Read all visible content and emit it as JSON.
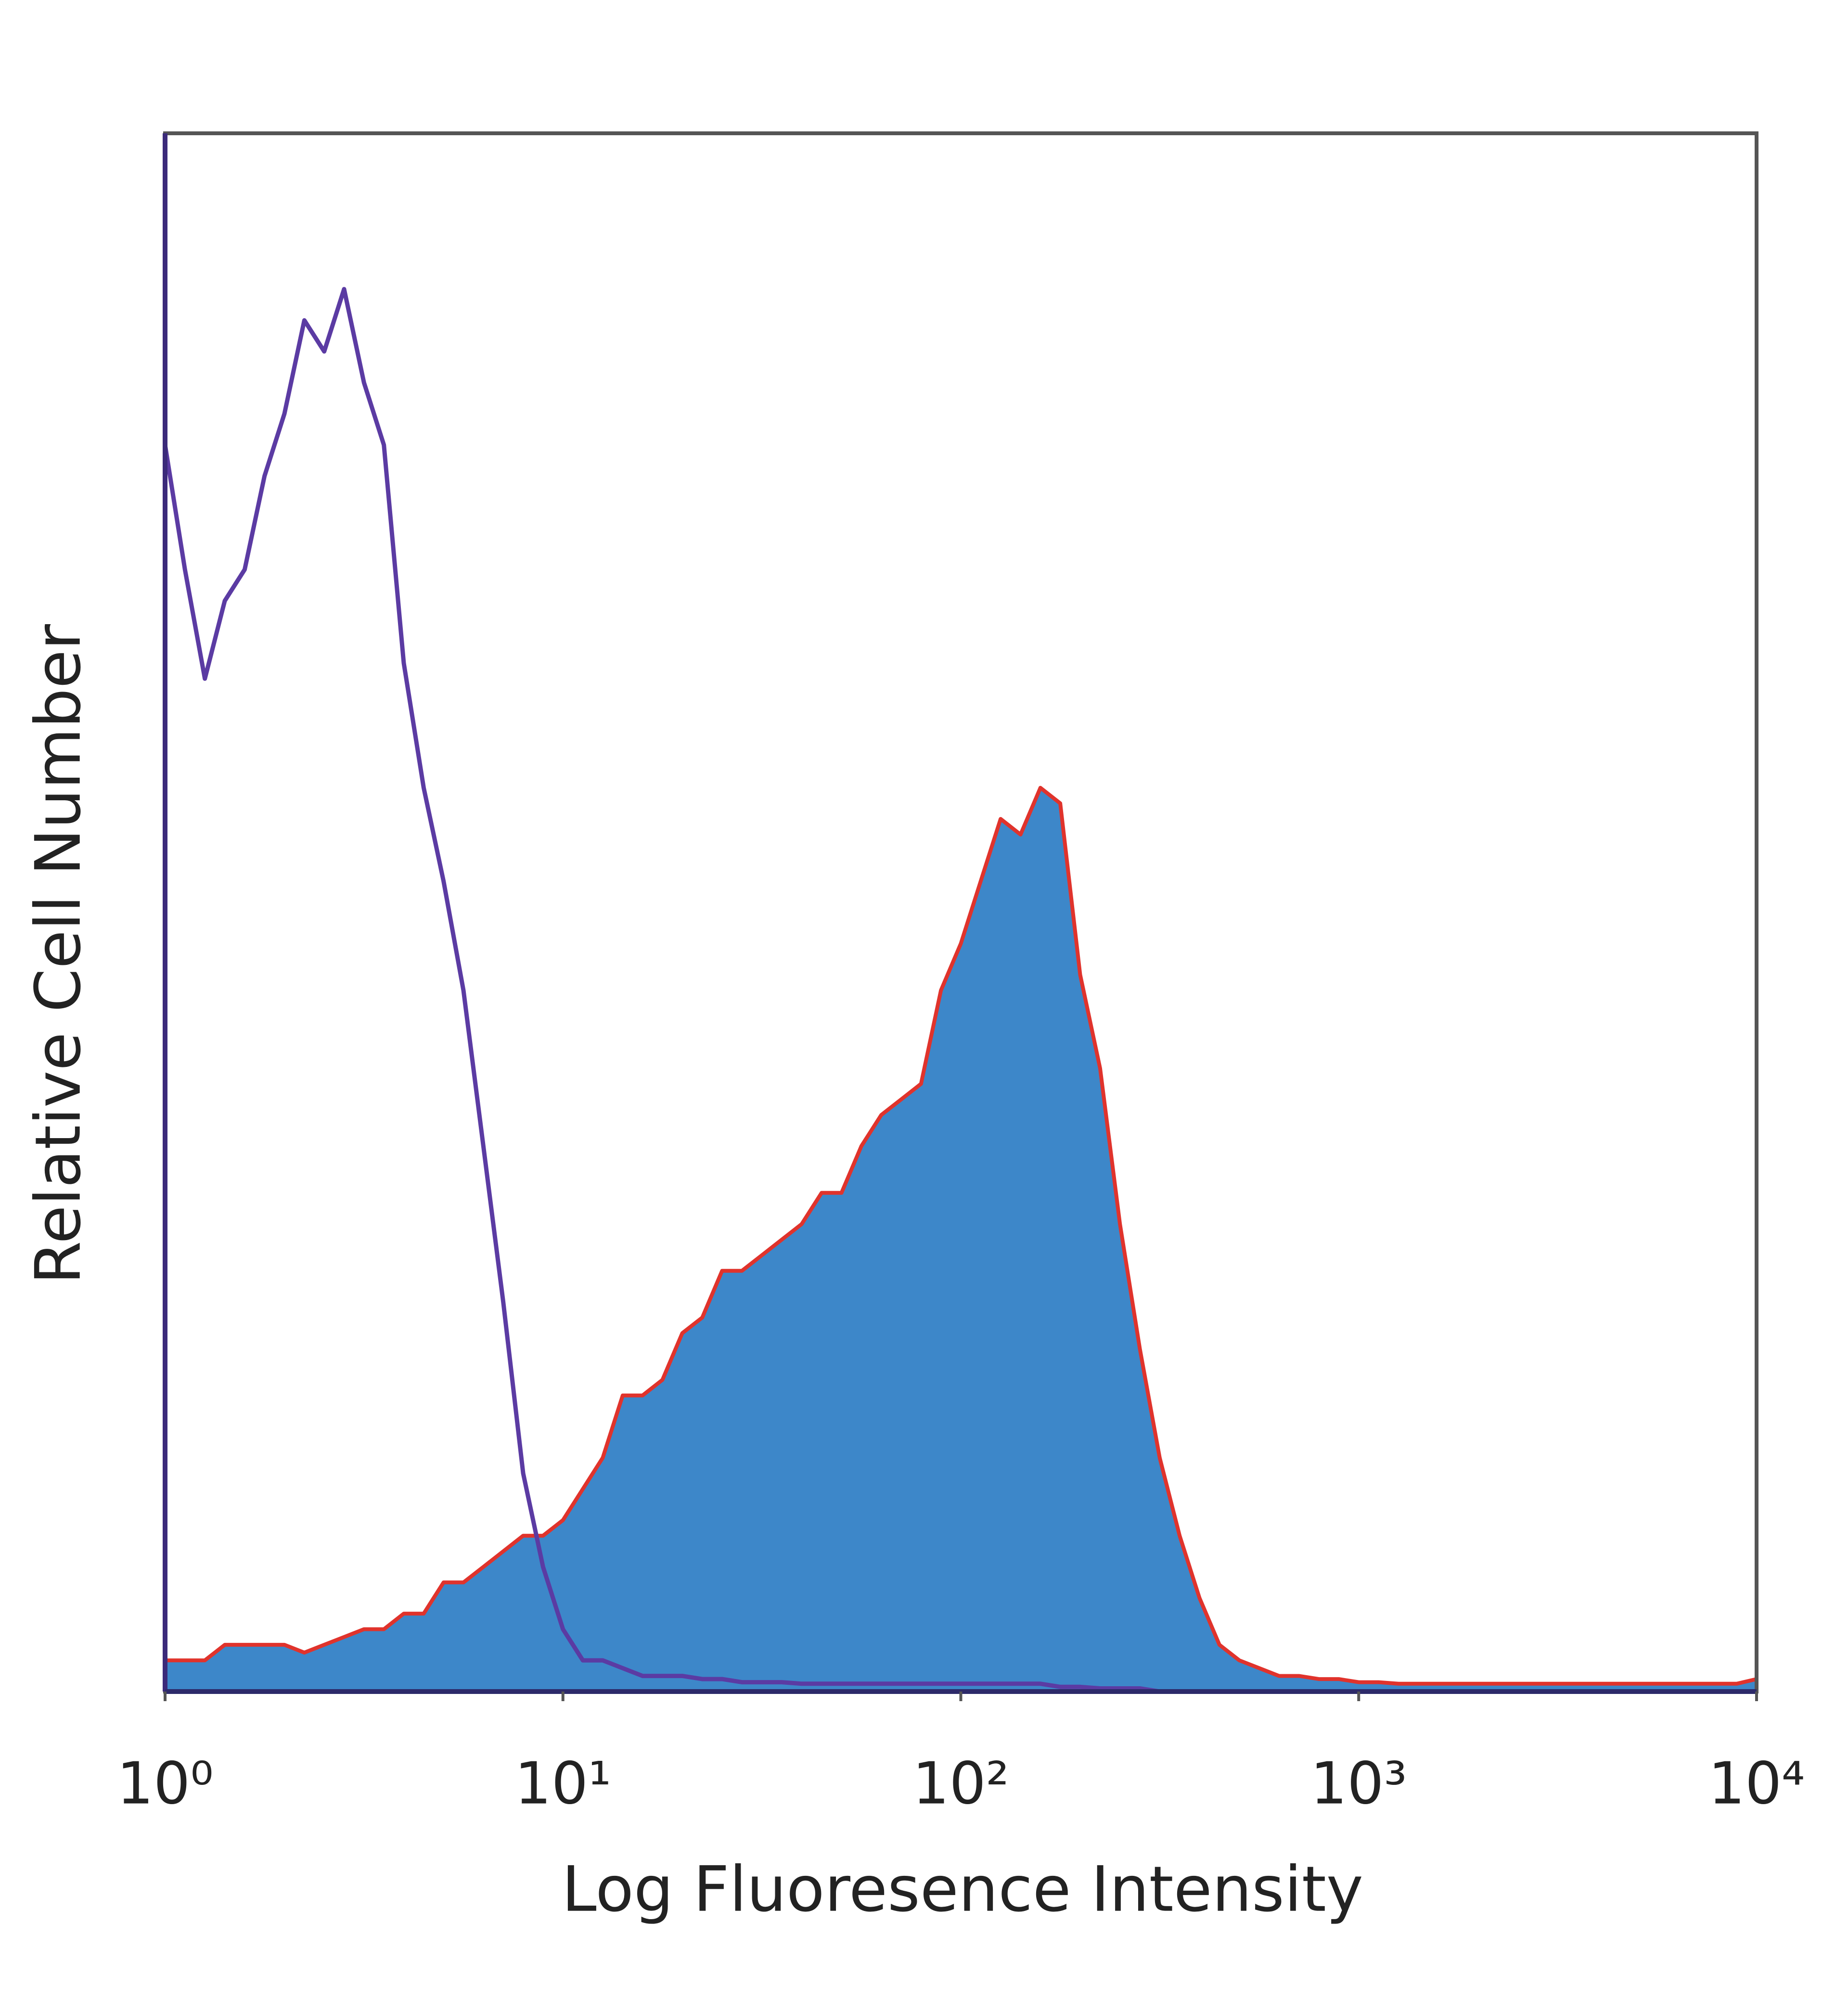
{
  "chart_data": {
    "type": "histogram-overlay",
    "x_label": "Log Fluoresence Intensity",
    "y_label": "Relative Cell Number",
    "xscale": "log",
    "xlim": [
      1,
      10000
    ],
    "ylim": [
      0,
      100
    ],
    "xticks": [
      {
        "value": 1,
        "label": "10⁰"
      },
      {
        "value": 10,
        "label": "10¹"
      },
      {
        "value": 100,
        "label": "10²"
      },
      {
        "value": 1000,
        "label": "10³"
      },
      {
        "value": 10000,
        "label": "10⁴"
      }
    ],
    "x": [
      1,
      1.122,
      1.259,
      1.413,
      1.585,
      1.778,
      1.995,
      2.239,
      2.512,
      2.818,
      3.162,
      3.548,
      3.981,
      4.467,
      5.012,
      5.623,
      6.31,
      7.079,
      7.943,
      8.913,
      10,
      11.22,
      12.59,
      14.13,
      15.85,
      17.78,
      19.95,
      22.39,
      25.12,
      28.18,
      31.62,
      35.48,
      39.81,
      44.67,
      50.12,
      56.23,
      63.1,
      70.79,
      79.43,
      89.13,
      100,
      112.2,
      125.9,
      141.3,
      158.5,
      177.8,
      199.5,
      223.9,
      251.2,
      281.8,
      316.2,
      354.8,
      398.1,
      446.7,
      501.2,
      562.3,
      631,
      707.9,
      794.3,
      891.3,
      1000,
      1122,
      1259,
      1413,
      1585,
      1778,
      1995,
      2239,
      2512,
      2818,
      3162,
      3548,
      3981,
      4467,
      5012,
      5623,
      6310,
      7079,
      7943,
      8913,
      10000
    ],
    "series": [
      {
        "color": "#3d87c9",
        "outline": "#e0332c",
        "fill": true,
        "values": [
          2,
          2,
          2,
          3,
          3,
          3,
          3,
          2.5,
          3,
          3.5,
          4,
          4,
          5,
          5,
          7,
          7,
          8,
          9,
          10,
          10,
          11,
          13,
          15,
          19,
          19,
          20,
          23,
          24,
          27,
          27,
          28,
          29,
          30,
          32,
          32,
          35,
          37,
          38,
          39,
          45,
          48,
          52,
          56,
          55,
          58,
          57,
          46,
          40,
          30,
          22,
          15,
          10,
          6,
          3,
          2,
          1.5,
          1,
          1,
          0.8,
          0.8,
          0.6,
          0.6,
          0.5,
          0.5,
          0.5,
          0.5,
          0.5,
          0.5,
          0.5,
          0.5,
          0.5,
          0.5,
          0.5,
          0.5,
          0.5,
          0.5,
          0.5,
          0.5,
          0.5,
          0.5,
          0.8
        ]
      },
      {
        "color": "#5b3ba3",
        "fill": false,
        "values": [
          80,
          72,
          65,
          70,
          72,
          78,
          82,
          88,
          86,
          90,
          84,
          80,
          66,
          58,
          52,
          45,
          35,
          25,
          14,
          8,
          4,
          2,
          2,
          1.5,
          1,
          1,
          1,
          0.8,
          0.8,
          0.6,
          0.6,
          0.6,
          0.5,
          0.5,
          0.5,
          0.5,
          0.5,
          0.5,
          0.5,
          0.5,
          0.5,
          0.5,
          0.5,
          0.5,
          0.5,
          0.3,
          0.3,
          0.2,
          0.2,
          0.2,
          0,
          0,
          0,
          0,
          0,
          0,
          0,
          0,
          0,
          0,
          0,
          0,
          0,
          0,
          0,
          0,
          0,
          0,
          0,
          0,
          0,
          0,
          0,
          0,
          0,
          0,
          0,
          0,
          0,
          0,
          0
        ]
      }
    ]
  }
}
